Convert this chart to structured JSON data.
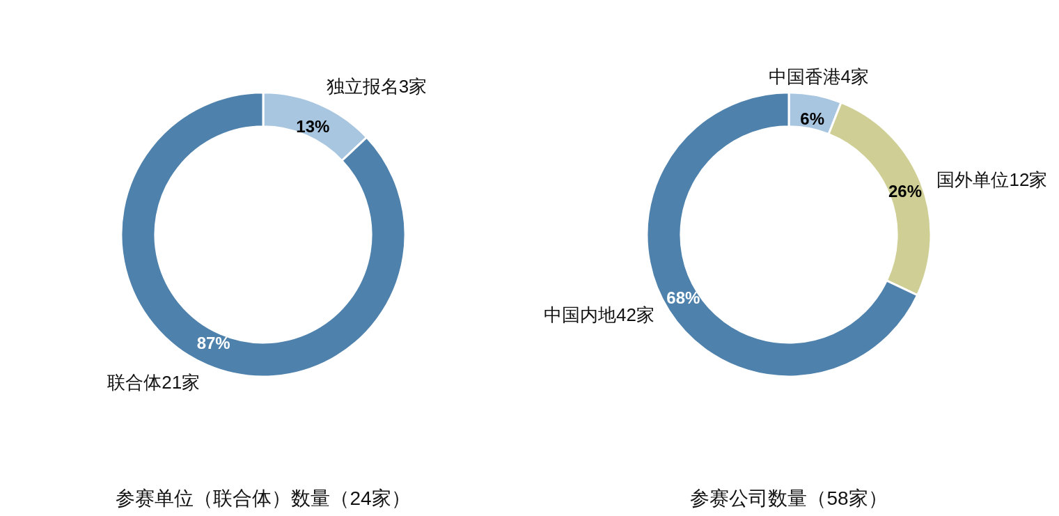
{
  "chart_data": [
    {
      "type": "donut",
      "title": "参赛单位（联合体）数量（24家）",
      "categories": [
        "独立报名3家",
        "联合体21家"
      ],
      "values": [
        13,
        87
      ],
      "colors": [
        "#a9c6e1",
        "#4e81ac"
      ],
      "value_labels": [
        "13%",
        "87%"
      ]
    },
    {
      "type": "donut",
      "title": "参赛公司数量（58家）",
      "categories": [
        "中国香港4家",
        "国外单位12家",
        "中国内地42家"
      ],
      "values": [
        6,
        26,
        68
      ],
      "colors": [
        "#a9c6e1",
        "#cfcf95",
        "#4e81ac"
      ],
      "value_labels": [
        "6%",
        "26%",
        "68%"
      ]
    }
  ]
}
